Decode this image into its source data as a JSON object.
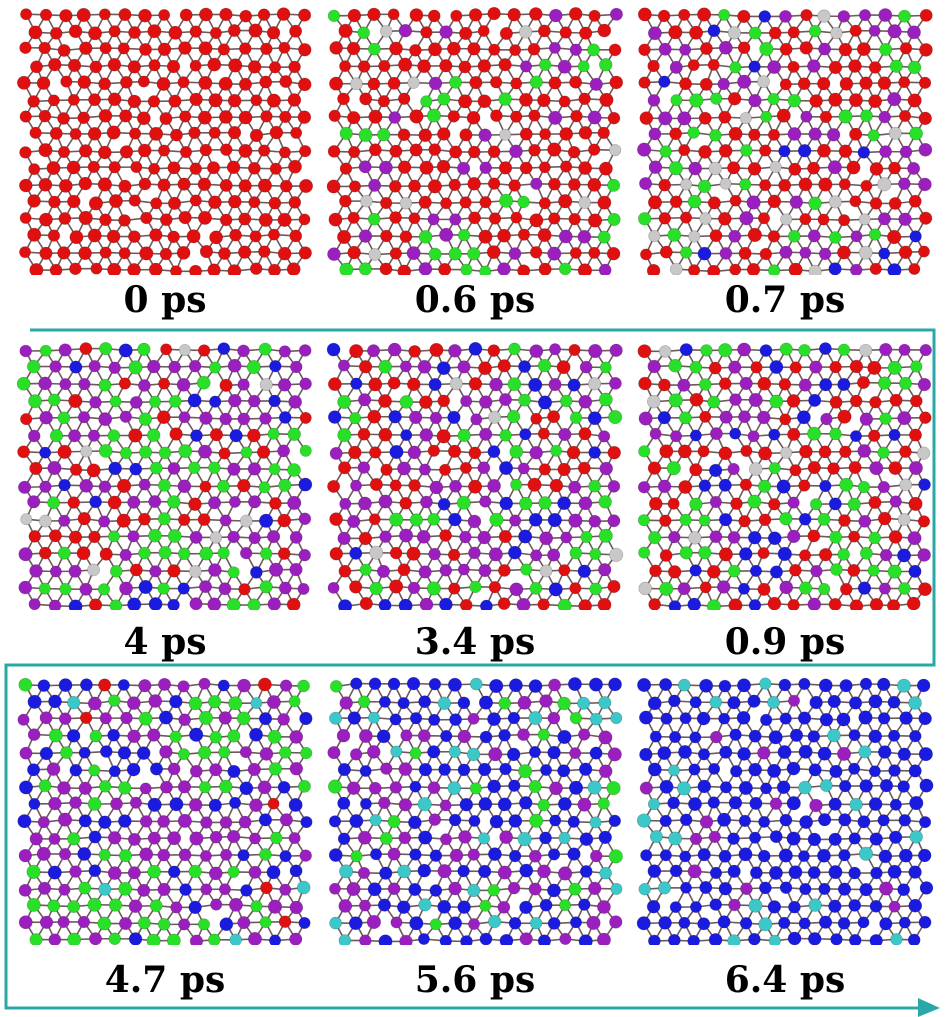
{
  "figure": {
    "frame_color": "#2aa8a8",
    "panels": [
      {
        "time": "0 ps",
        "colors": [
          "#e01010"
        ],
        "weights": [
          1
        ]
      },
      {
        "time": "0.6 ps",
        "colors": [
          "#e01010",
          "#9b1fbf",
          "#28e028",
          "#c8c8c8"
        ],
        "weights": [
          0.72,
          0.12,
          0.1,
          0.06
        ]
      },
      {
        "time": "0.7 ps",
        "colors": [
          "#e01010",
          "#9b1fbf",
          "#28e028",
          "#c8c8c8",
          "#1b1be0"
        ],
        "weights": [
          0.48,
          0.2,
          0.2,
          0.08,
          0.04
        ]
      },
      {
        "time": "4 ps",
        "colors": [
          "#9b1fbf",
          "#28e028",
          "#1b1be0",
          "#e01010",
          "#c8c8c8"
        ],
        "weights": [
          0.4,
          0.25,
          0.13,
          0.18,
          0.04
        ]
      },
      {
        "time": "3.4 ps",
        "colors": [
          "#9b1fbf",
          "#28e028",
          "#1b1be0",
          "#e01010",
          "#c8c8c8"
        ],
        "weights": [
          0.33,
          0.2,
          0.17,
          0.27,
          0.03
        ]
      },
      {
        "time": "0.9 ps",
        "colors": [
          "#e01010",
          "#28e028",
          "#9b1fbf",
          "#1b1be0",
          "#c8c8c8"
        ],
        "weights": [
          0.35,
          0.3,
          0.2,
          0.1,
          0.05
        ]
      },
      {
        "time": "4.7 ps",
        "colors": [
          "#9b1fbf",
          "#28e028",
          "#1b1be0",
          "#e01010",
          "#3cc8c8"
        ],
        "weights": [
          0.45,
          0.25,
          0.22,
          0.04,
          0.04
        ]
      },
      {
        "time": "5.6 ps",
        "colors": [
          "#1b1be0",
          "#9b1fbf",
          "#3cc8c8",
          "#28e028"
        ],
        "weights": [
          0.5,
          0.28,
          0.12,
          0.1
        ]
      },
      {
        "time": "6.4 ps",
        "colors": [
          "#1b1be0",
          "#3cc8c8",
          "#9b1fbf"
        ],
        "weights": [
          0.78,
          0.16,
          0.06
        ]
      }
    ]
  }
}
